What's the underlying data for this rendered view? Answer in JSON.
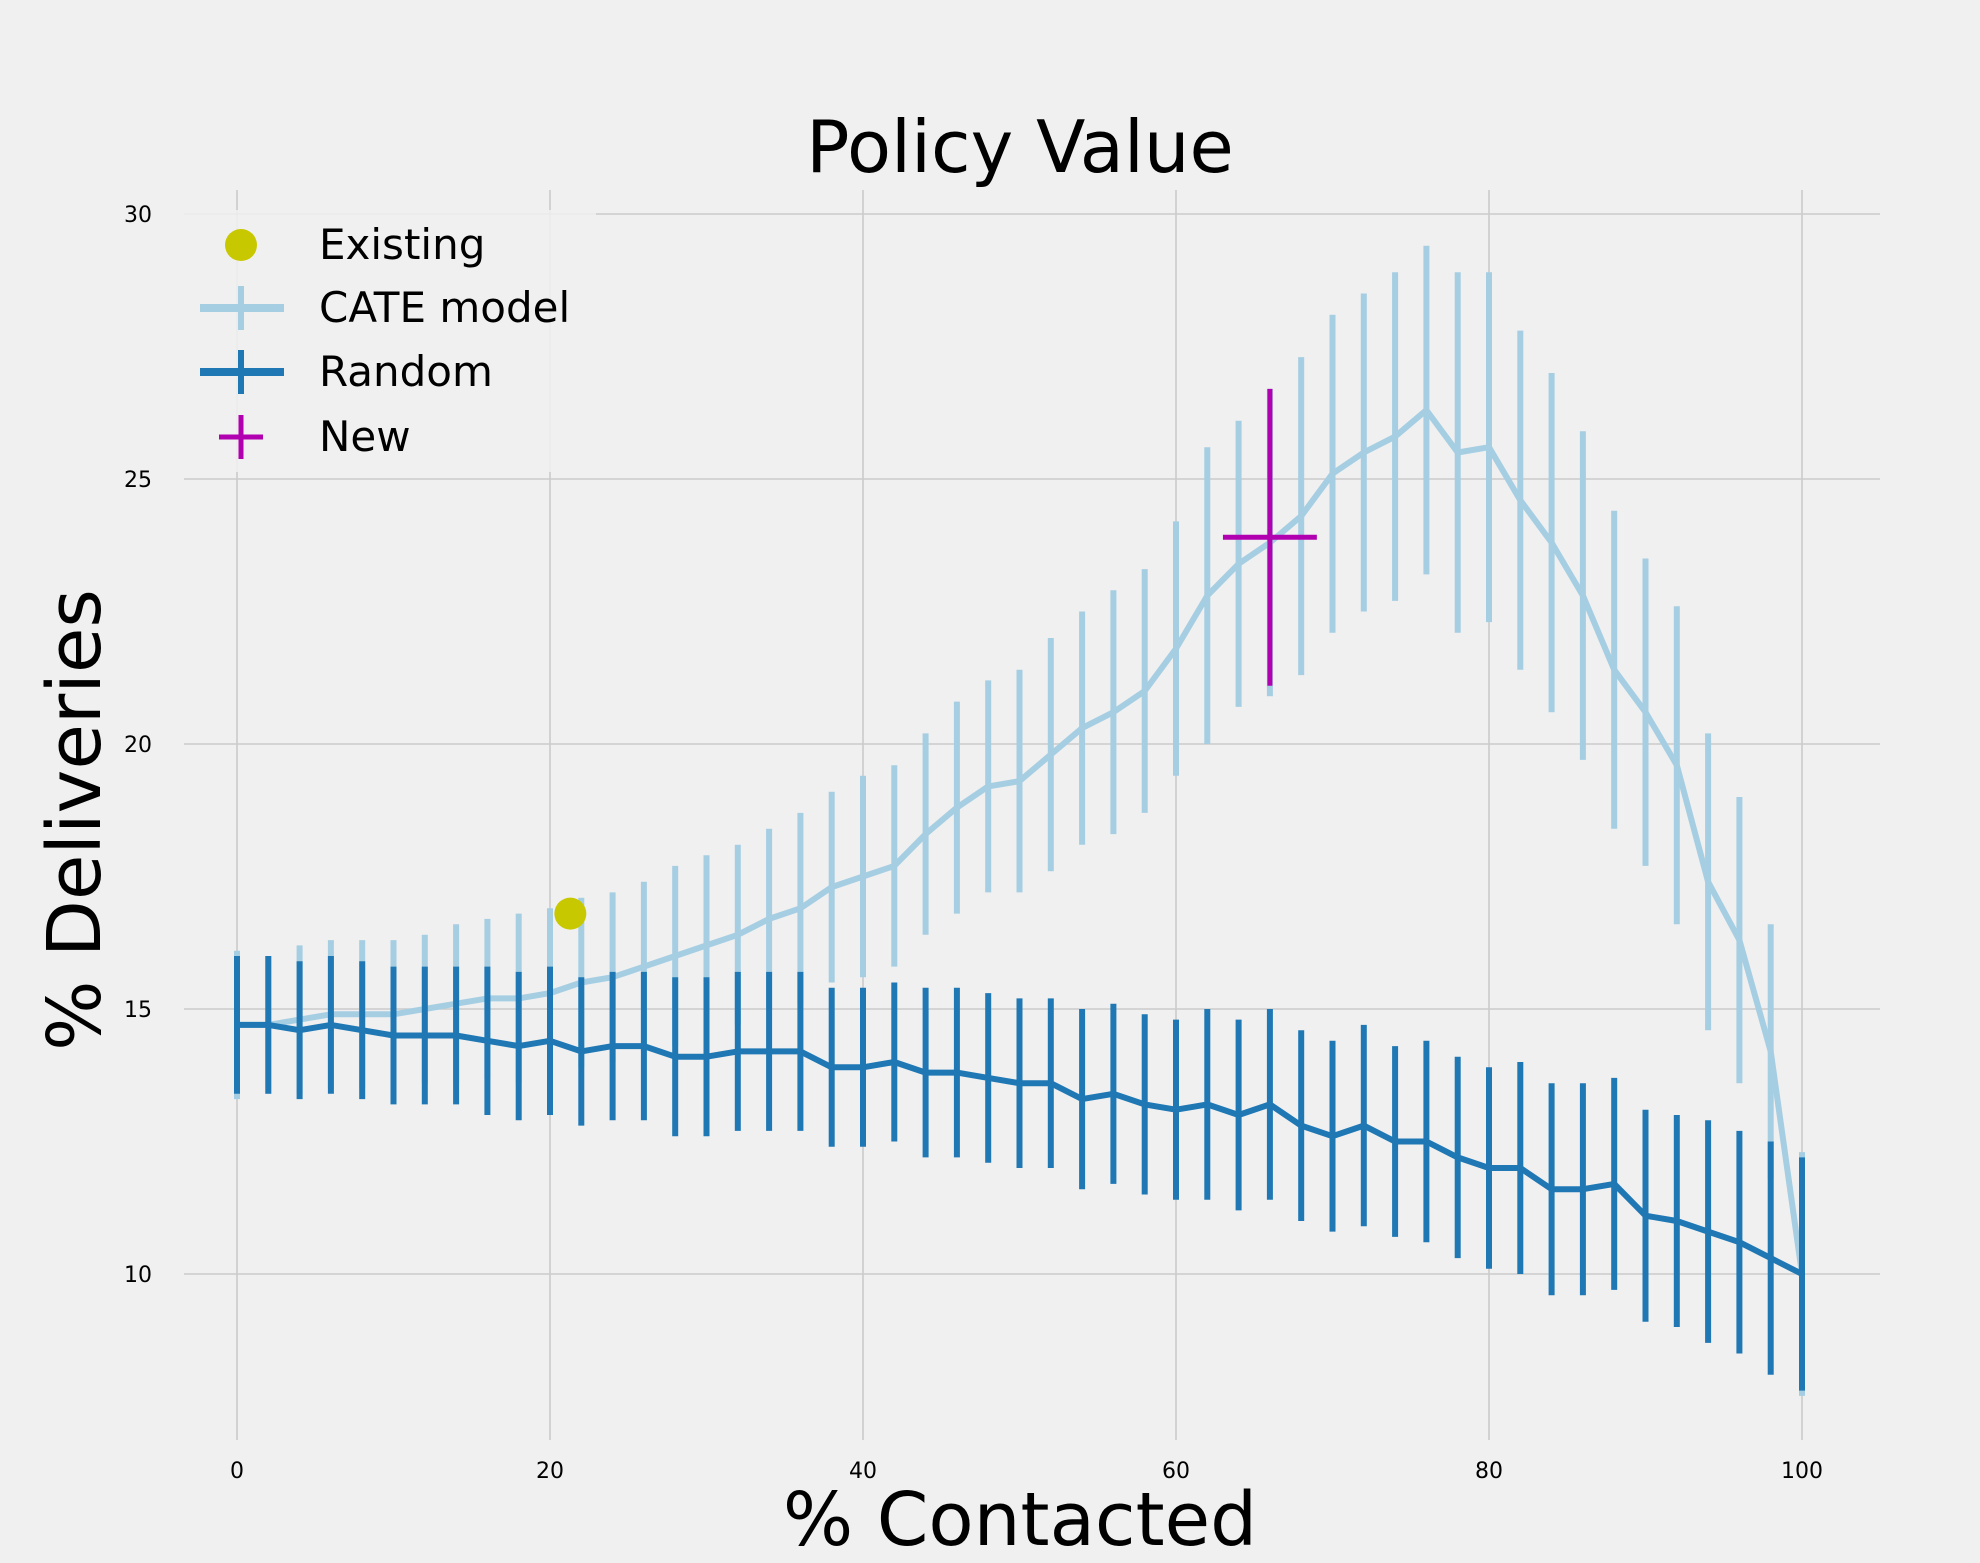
{
  "chart_data": {
    "type": "line",
    "title": "Policy Value",
    "xlabel": "% Contacted",
    "ylabel": "% Deliveries",
    "xlim": [
      0,
      100
    ],
    "ylim": [
      7.3,
      30.5
    ],
    "xticks": [
      "0",
      "20",
      "40",
      "60",
      "80",
      "100"
    ],
    "yticks": [
      "10",
      "15",
      "20",
      "25",
      "30"
    ],
    "grid": true,
    "legend_position": "top-left",
    "legend": [
      {
        "label": "Existing",
        "marker": "dot",
        "color": "#c8c800"
      },
      {
        "label": "CATE model",
        "marker": "errorbar",
        "color": "#a6cee3"
      },
      {
        "label": "Random",
        "marker": "errorbar",
        "color": "#1f78b4"
      },
      {
        "label": "New",
        "marker": "cross",
        "color": "#b000b0"
      }
    ],
    "series": [
      {
        "name": "CATE model",
        "color": "#a6cee3",
        "x": [
          0,
          2,
          4,
          6,
          8,
          10,
          12,
          14,
          16,
          18,
          20,
          22,
          24,
          26,
          28,
          30,
          32,
          34,
          36,
          38,
          40,
          42,
          44,
          46,
          48,
          50,
          52,
          54,
          56,
          58,
          60,
          62,
          64,
          66,
          68,
          70,
          72,
          74,
          76,
          78,
          80,
          82,
          84,
          86,
          88,
          90,
          92,
          94,
          96,
          98,
          100
        ],
        "y": [
          14.7,
          14.7,
          14.8,
          14.9,
          14.9,
          14.9,
          15.0,
          15.1,
          15.2,
          15.2,
          15.3,
          15.5,
          15.6,
          15.8,
          16.0,
          16.2,
          16.4,
          16.7,
          16.9,
          17.3,
          17.5,
          17.7,
          18.3,
          18.8,
          19.2,
          19.3,
          19.8,
          20.3,
          20.6,
          21.0,
          21.8,
          22.8,
          23.4,
          23.8,
          24.3,
          25.1,
          25.5,
          25.8,
          26.3,
          25.5,
          25.6,
          24.6,
          23.8,
          22.8,
          21.4,
          20.6,
          19.6,
          17.4,
          16.3,
          14.2,
          10.0
        ],
        "error": [
          1.4,
          1.3,
          1.4,
          1.4,
          1.4,
          1.4,
          1.4,
          1.5,
          1.5,
          1.6,
          1.6,
          1.6,
          1.6,
          1.6,
          1.7,
          1.7,
          1.7,
          1.7,
          1.8,
          1.8,
          1.9,
          1.9,
          1.9,
          2.0,
          2.0,
          2.1,
          2.2,
          2.2,
          2.3,
          2.3,
          2.4,
          2.8,
          2.7,
          2.9,
          3.0,
          3.0,
          3.0,
          3.1,
          3.1,
          3.4,
          3.3,
          3.2,
          3.2,
          3.1,
          3.0,
          2.9,
          3.0,
          2.8,
          2.7,
          2.4,
          2.3
        ]
      },
      {
        "name": "Random",
        "color": "#1f78b4",
        "x": [
          0,
          2,
          4,
          6,
          8,
          10,
          12,
          14,
          16,
          18,
          20,
          22,
          24,
          26,
          28,
          30,
          32,
          34,
          36,
          38,
          40,
          42,
          44,
          46,
          48,
          50,
          52,
          54,
          56,
          58,
          60,
          62,
          64,
          66,
          68,
          70,
          72,
          74,
          76,
          78,
          80,
          82,
          84,
          86,
          88,
          90,
          92,
          94,
          96,
          98,
          100
        ],
        "y": [
          14.7,
          14.7,
          14.6,
          14.7,
          14.6,
          14.5,
          14.5,
          14.5,
          14.4,
          14.3,
          14.4,
          14.2,
          14.3,
          14.3,
          14.1,
          14.1,
          14.2,
          14.2,
          14.2,
          13.9,
          13.9,
          14.0,
          13.8,
          13.8,
          13.7,
          13.6,
          13.6,
          13.3,
          13.4,
          13.2,
          13.1,
          13.2,
          13.0,
          13.2,
          12.8,
          12.6,
          12.8,
          12.5,
          12.5,
          12.2,
          12.0,
          12.0,
          11.6,
          11.6,
          11.7,
          11.1,
          11.0,
          10.8,
          10.6,
          10.3,
          10.0
        ],
        "error": [
          1.3,
          1.3,
          1.3,
          1.3,
          1.3,
          1.3,
          1.3,
          1.3,
          1.4,
          1.4,
          1.4,
          1.4,
          1.4,
          1.4,
          1.5,
          1.5,
          1.5,
          1.5,
          1.5,
          1.5,
          1.5,
          1.5,
          1.6,
          1.6,
          1.6,
          1.6,
          1.6,
          1.7,
          1.7,
          1.7,
          1.7,
          1.8,
          1.8,
          1.8,
          1.8,
          1.8,
          1.9,
          1.8,
          1.9,
          1.9,
          1.9,
          2.0,
          2.0,
          2.0,
          2.0,
          2.0,
          2.0,
          2.1,
          2.1,
          2.2,
          2.2
        ]
      }
    ],
    "points": [
      {
        "name": "Existing",
        "x": 21.3,
        "y": 16.8,
        "color": "#c8c800"
      },
      {
        "name": "New",
        "x": 66,
        "y": 23.9,
        "xerr": 3,
        "yerr": 2.8,
        "color": "#b000b0"
      }
    ]
  }
}
